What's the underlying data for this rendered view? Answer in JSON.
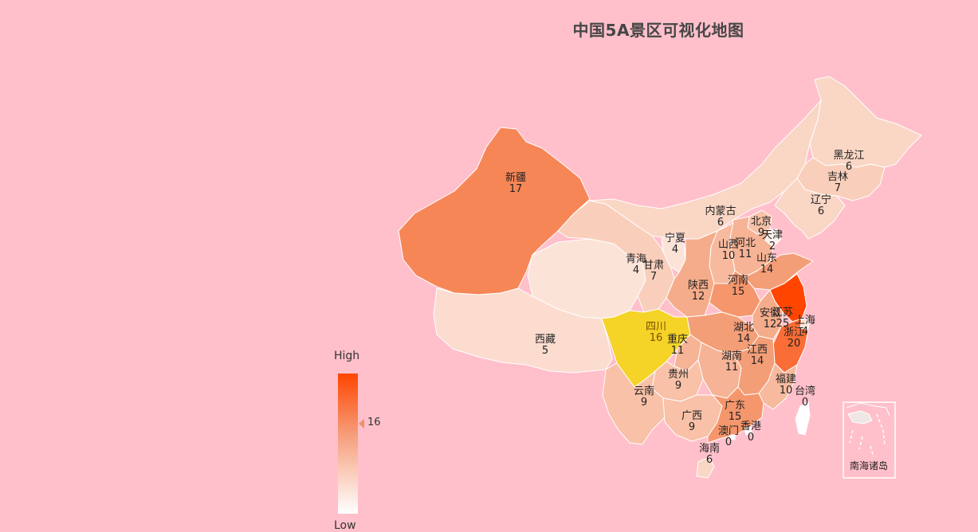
{
  "title": "中国5A景区可视化地图",
  "visual_map": {
    "high_label": "High",
    "low_label": "Low",
    "min": 0,
    "max": 25,
    "color_low": "#ffffff",
    "color_mid": "#f4a07a",
    "color_high": "#ff4500",
    "indicator_value": "16",
    "highlight_color": "#f5d327"
  },
  "inset_label": "南海诸岛",
  "chart_data": {
    "type": "map",
    "title": "中国5A景区可视化地图",
    "highlighted": "四川",
    "regions": [
      {
        "name": "新疆",
        "value": 17
      },
      {
        "name": "西藏",
        "value": 5
      },
      {
        "name": "青海",
        "value": 4
      },
      {
        "name": "甘肃",
        "value": 7
      },
      {
        "name": "宁夏",
        "value": 4
      },
      {
        "name": "内蒙古",
        "value": 6
      },
      {
        "name": "黑龙江",
        "value": 6
      },
      {
        "name": "吉林",
        "value": 7
      },
      {
        "name": "辽宁",
        "value": 6
      },
      {
        "name": "北京",
        "value": 9
      },
      {
        "name": "天津",
        "value": 2
      },
      {
        "name": "河北",
        "value": 11
      },
      {
        "name": "山西",
        "value": 10
      },
      {
        "name": "山东",
        "value": 14
      },
      {
        "name": "陕西",
        "value": 12
      },
      {
        "name": "河南",
        "value": 15
      },
      {
        "name": "江苏",
        "value": 25
      },
      {
        "name": "安徽",
        "value": 12
      },
      {
        "name": "上海",
        "value": 4
      },
      {
        "name": "浙江",
        "value": 20
      },
      {
        "name": "四川",
        "value": 16
      },
      {
        "name": "重庆",
        "value": 11
      },
      {
        "name": "湖北",
        "value": 14
      },
      {
        "name": "湖南",
        "value": 11
      },
      {
        "name": "江西",
        "value": 14
      },
      {
        "name": "贵州",
        "value": 9
      },
      {
        "name": "云南",
        "value": 9
      },
      {
        "name": "福建",
        "value": 10
      },
      {
        "name": "台湾",
        "value": 0
      },
      {
        "name": "广西",
        "value": 9
      },
      {
        "name": "广东",
        "value": 15
      },
      {
        "name": "香港",
        "value": 0
      },
      {
        "name": "澳门",
        "value": 0
      },
      {
        "name": "海南",
        "value": 6
      }
    ]
  }
}
